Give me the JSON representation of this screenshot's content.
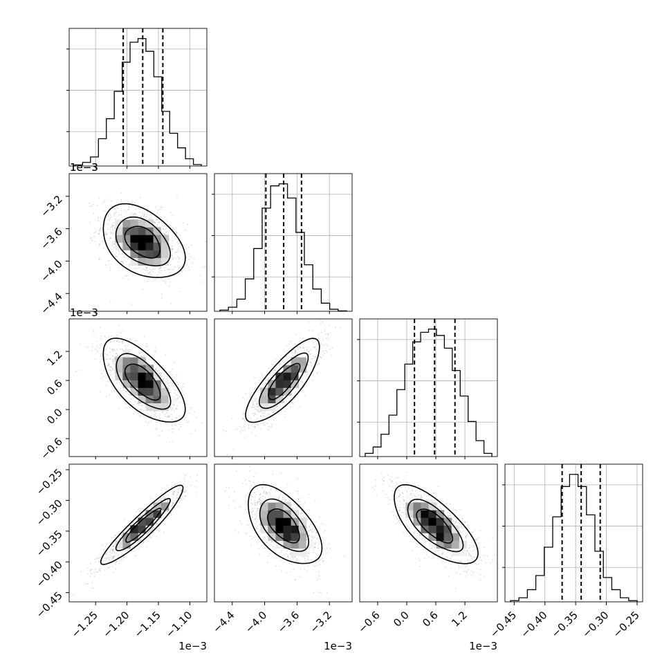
{
  "chart_data": {
    "type": "corner",
    "title": "",
    "parameters": [
      {
        "range": [
          -1.292,
          -1.073
        ],
        "ticks": [
          -1.25,
          -1.2,
          -1.15,
          -1.1
        ],
        "tick_labels": [
          "−1.25",
          "−1.20",
          "−1.15",
          "−1.10"
        ],
        "offset_label": "1e−3",
        "quantiles": [
          -1.206,
          -1.175,
          -1.143
        ],
        "hist": [
          0.3,
          1.0,
          2.5,
          7.5,
          13.0,
          20.5,
          28.5,
          34.0,
          35.0,
          31.5,
          24.5,
          15.0,
          9.0,
          5.0,
          2.0,
          0.4
        ]
      },
      {
        "range": [
          -4.62,
          -2.92
        ],
        "ticks": [
          -4.4,
          -4.0,
          -3.6,
          -3.2
        ],
        "tick_labels": [
          "−4.4",
          "−4.0",
          "−3.6",
          "−3.2"
        ],
        "offset_label": "1e−3",
        "quantiles": [
          -3.985,
          -3.765,
          -3.545
        ],
        "hist": [
          0.3,
          1.0,
          3.0,
          8.0,
          15.5,
          25.5,
          31.0,
          31.5,
          28.0,
          19.5,
          11.5,
          5.5,
          2.0,
          0.5,
          0.1
        ]
      },
      {
        "range": [
          -0.97,
          1.87
        ],
        "ticks": [
          -0.6,
          0.0,
          0.6,
          1.2
        ],
        "tick_labels": [
          "−0.6",
          "0.0",
          "0.6",
          "1.2"
        ],
        "offset_label": "1e−3",
        "quantiles": [
          0.16,
          0.575,
          0.995
        ],
        "hist": [
          0.5,
          1.5,
          3.5,
          6.5,
          10.5,
          14.5,
          18.0,
          19.5,
          20.0,
          19.0,
          17.0,
          13.5,
          9.5,
          5.5,
          2.5,
          0.5
        ]
      },
      {
        "range": [
          -0.465,
          -0.241
        ],
        "ticks": [
          -0.45,
          -0.4,
          -0.35,
          -0.3,
          -0.25
        ],
        "tick_labels": [
          "−0.45",
          "−0.40",
          "−0.35",
          "−0.30",
          "−0.25"
        ],
        "offset_label": "",
        "quantiles": [
          -0.372,
          -0.341,
          -0.31
        ],
        "hist": [
          0.3,
          1.0,
          3.0,
          6.5,
          13.5,
          21.0,
          28.5,
          31.5,
          28.5,
          21.5,
          12.5,
          6.0,
          3.0,
          1.0,
          0.3
        ]
      }
    ],
    "correlations": [
      {
        "row": 1,
        "col": 0,
        "rho": -0.4
      },
      {
        "row": 2,
        "col": 0,
        "rho": -0.65
      },
      {
        "row": 2,
        "col": 1,
        "rho": 0.8
      },
      {
        "row": 3,
        "col": 0,
        "rho": 0.93
      },
      {
        "row": 3,
        "col": 1,
        "rho": -0.55
      },
      {
        "row": 3,
        "col": 2,
        "rho": -0.7
      }
    ],
    "contour_levels": [
      0.5,
      1.0,
      1.5
    ],
    "grid": true
  }
}
